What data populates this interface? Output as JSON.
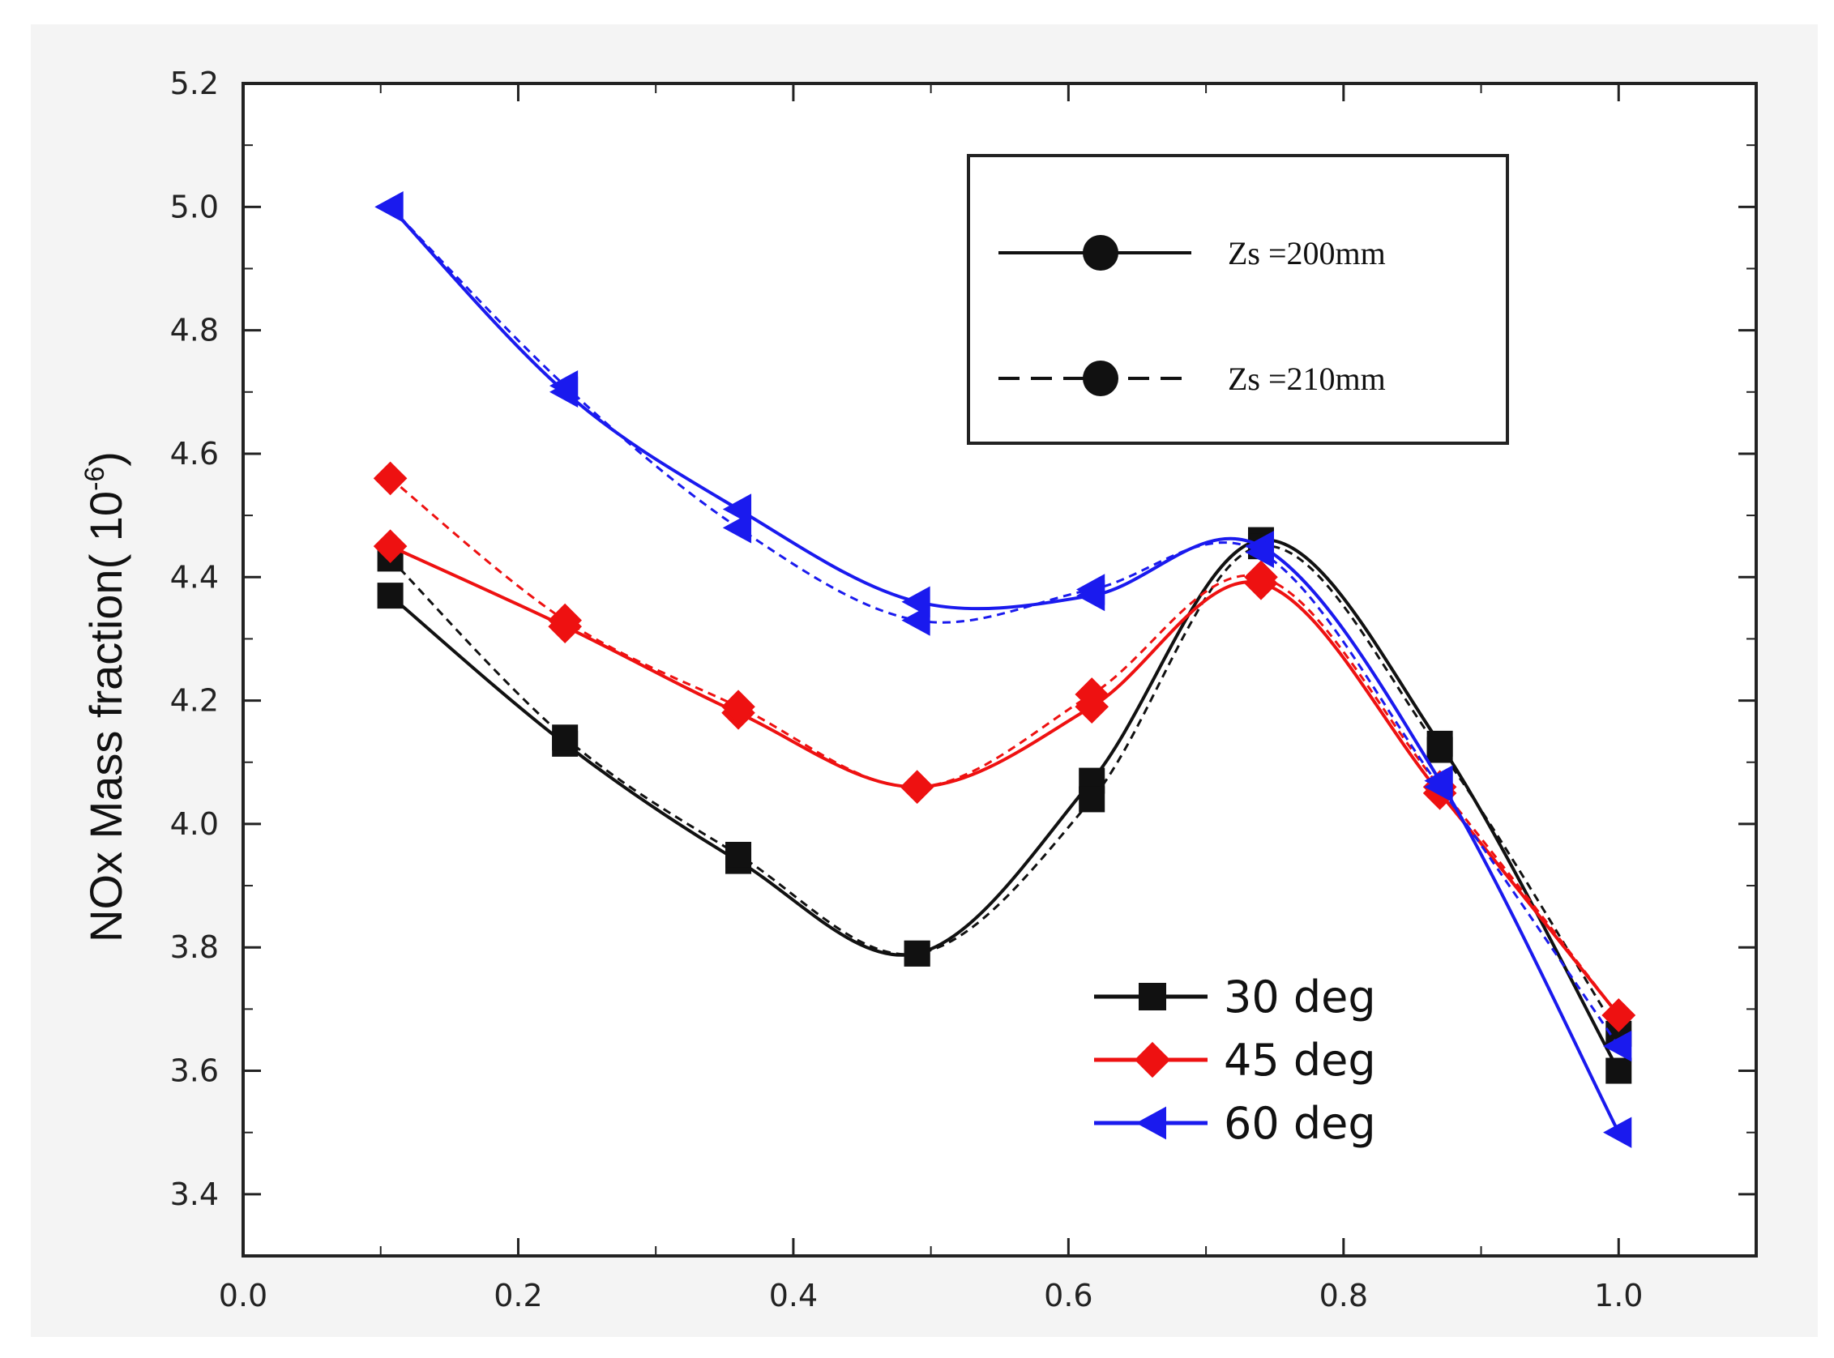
{
  "chart_data": {
    "type": "line",
    "title": "",
    "xlabel": "",
    "ylabel": "NOx Mass fraction( 10",
    "ylabel_exp": "-6",
    "ylabel_close": ")",
    "xlim": [
      0.0,
      1.1
    ],
    "ylim": [
      3.3,
      5.2
    ],
    "xticks": [
      "0.0",
      "0.2",
      "0.4",
      "0.6",
      "0.8",
      "1.0"
    ],
    "yticks": [
      "3.4",
      "3.6",
      "3.8",
      "4.0",
      "4.2",
      "4.4",
      "4.6",
      "4.8",
      "5.0",
      "5.2"
    ],
    "x": [
      0.107,
      0.234,
      0.36,
      0.49,
      0.617,
      0.74,
      0.87,
      1.0
    ],
    "series": [
      {
        "name": "30 deg",
        "linestyle": "solid",
        "color": "#111111",
        "marker": "square",
        "values": [
          4.37,
          4.13,
          3.94,
          3.79,
          4.07,
          4.46,
          4.13,
          3.6
        ]
      },
      {
        "name": "30 deg",
        "linestyle": "dashed",
        "color": "#111111",
        "marker": "square",
        "values": [
          4.43,
          4.14,
          3.95,
          3.79,
          4.04,
          4.45,
          4.12,
          3.66
        ]
      },
      {
        "name": "45 deg",
        "linestyle": "solid",
        "color": "#ee1111",
        "marker": "diamond",
        "values": [
          4.45,
          4.32,
          4.18,
          4.06,
          4.19,
          4.39,
          4.05,
          3.69
        ]
      },
      {
        "name": "45 deg",
        "linestyle": "dashed",
        "color": "#ee1111",
        "marker": "diamond",
        "values": [
          4.56,
          4.33,
          4.19,
          4.06,
          4.21,
          4.4,
          4.06,
          3.69
        ]
      },
      {
        "name": "60 deg",
        "linestyle": "solid",
        "color": "#1a1aee",
        "marker": "triangle-left",
        "values": [
          5.0,
          4.7,
          4.51,
          4.36,
          4.37,
          4.45,
          4.07,
          3.5
        ]
      },
      {
        "name": "60 deg",
        "linestyle": "dashed",
        "color": "#1a1aee",
        "marker": "triangle-left",
        "values": [
          5.0,
          4.71,
          4.48,
          4.33,
          4.38,
          4.44,
          4.06,
          3.64
        ]
      }
    ],
    "legend_linestyle": {
      "placement": "top-right",
      "entries": [
        {
          "label": "Zs =200mm",
          "linestyle": "solid"
        },
        {
          "label": "Zs =210mm",
          "linestyle": "dashed"
        }
      ]
    },
    "legend_series": {
      "placement": "bottom-right",
      "entries": [
        {
          "label": "30 deg",
          "color": "#111111",
          "marker": "square"
        },
        {
          "label": "45 deg",
          "color": "#ee1111",
          "marker": "diamond"
        },
        {
          "label": "60 deg",
          "color": "#1a1aee",
          "marker": "triangle-left"
        }
      ]
    },
    "grid": false
  }
}
